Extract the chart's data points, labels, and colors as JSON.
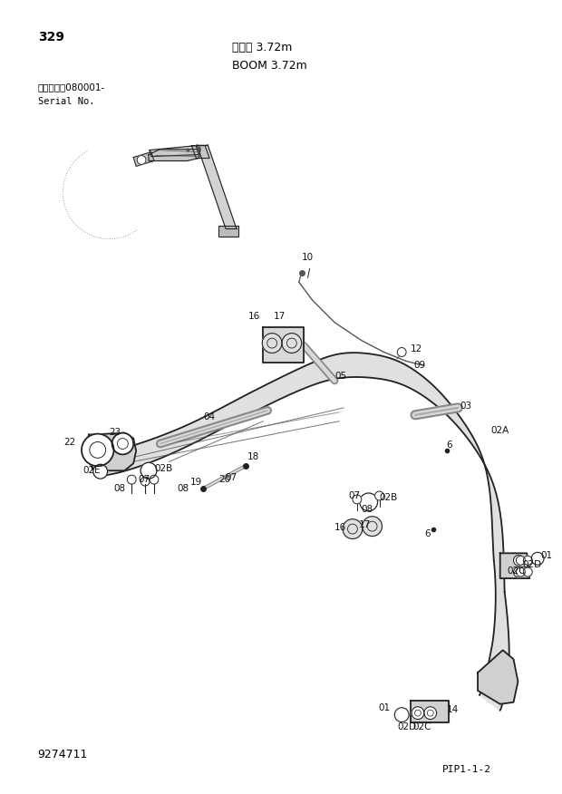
{
  "page_number": "329",
  "title_jp": "ブーム 3.72m",
  "title_en": "BOOM 3.72m",
  "serial_label_jp": "適用号機　080001-",
  "serial_label_en": "Serial No.",
  "part_number": "9274711",
  "page_code": "PIP1-1-2",
  "bg_color": "#ffffff",
  "text_color": "#000000",
  "line_color": "#222222"
}
